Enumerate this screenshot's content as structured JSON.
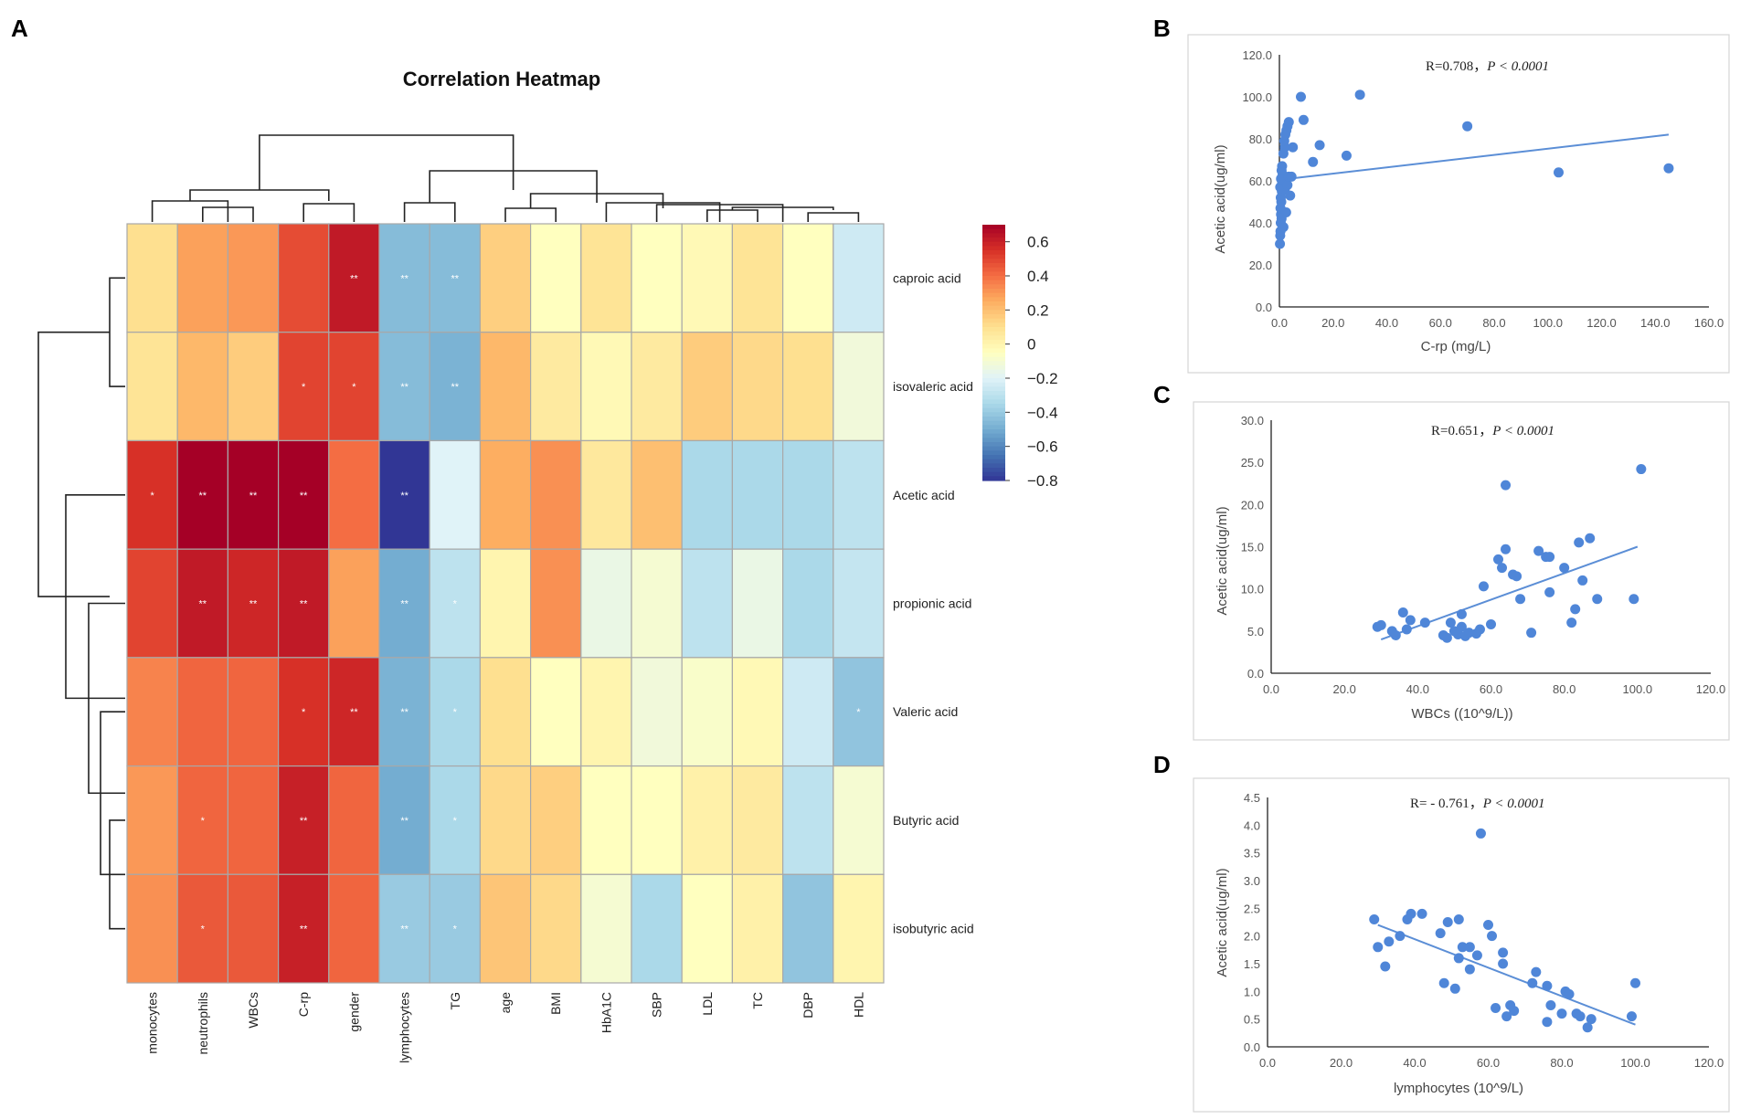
{
  "panel_labels": {
    "a": "A",
    "b": "B",
    "c": "C",
    "d": "D"
  },
  "chart_data": [
    {
      "type": "heatmap",
      "title": "Correlation Heatmap",
      "rows": [
        "caproic acid",
        "isovaleric acid",
        "Acetic acid",
        "propionic acid",
        "Valeric acid",
        "Butyric acid",
        "isobutyric acid"
      ],
      "columns": [
        "monocytes",
        "neutrophils",
        "WBCs",
        "C-rp",
        "gender",
        "lymphocytes",
        "TG",
        "age",
        "BMI",
        "HbA1C",
        "SBP",
        "LDL",
        "TC",
        "DBP",
        "HDL"
      ],
      "values": [
        [
          0.1,
          0.28,
          0.3,
          0.48,
          0.62,
          -0.45,
          -0.45,
          0.15,
          -0.05,
          0.08,
          -0.05,
          -0.02,
          0.08,
          -0.05,
          -0.25
        ],
        [
          0.08,
          0.22,
          0.16,
          0.5,
          0.5,
          -0.45,
          -0.48,
          0.22,
          0.05,
          -0.02,
          0.05,
          0.16,
          0.12,
          0.1,
          -0.12
        ],
        [
          0.55,
          0.72,
          0.7,
          0.75,
          0.4,
          -0.8,
          -0.2,
          0.25,
          0.32,
          0.06,
          0.2,
          -0.35,
          -0.35,
          -0.35,
          -0.3
        ],
        [
          0.5,
          0.62,
          0.58,
          0.62,
          0.28,
          -0.5,
          -0.3,
          0.0,
          0.32,
          -0.15,
          -0.1,
          -0.3,
          -0.15,
          -0.35,
          -0.28
        ],
        [
          0.35,
          0.42,
          0.42,
          0.55,
          0.58,
          -0.48,
          -0.35,
          0.1,
          -0.05,
          0.0,
          -0.12,
          -0.08,
          -0.02,
          -0.25,
          -0.42
        ],
        [
          0.3,
          0.42,
          0.42,
          0.6,
          0.42,
          -0.5,
          -0.35,
          0.12,
          0.15,
          -0.05,
          -0.05,
          0.02,
          0.05,
          -0.3,
          -0.1
        ],
        [
          0.32,
          0.45,
          0.45,
          0.6,
          0.42,
          -0.4,
          -0.4,
          0.18,
          0.12,
          -0.1,
          -0.35,
          -0.05,
          0.02,
          -0.42,
          0.0
        ]
      ],
      "significance": [
        [
          "",
          "",
          "",
          "",
          "**",
          "**",
          "**",
          "",
          "",
          "",
          "",
          "",
          "",
          "",
          ""
        ],
        [
          "",
          "",
          "",
          "*",
          "*",
          "**",
          "**",
          "",
          "",
          "",
          "",
          "",
          "",
          "",
          ""
        ],
        [
          "*",
          "**",
          "**",
          "**",
          "",
          "**",
          "",
          "",
          "",
          "",
          "",
          "",
          "",
          "",
          ""
        ],
        [
          "",
          "**",
          "**",
          "**",
          "",
          "**",
          "*",
          "",
          "",
          "",
          "",
          "",
          "",
          "",
          ""
        ],
        [
          "",
          "",
          "",
          "*",
          "**",
          "**",
          "*",
          "",
          "",
          "",
          "",
          "",
          "",
          "",
          "*"
        ],
        [
          "",
          "*",
          "",
          "**",
          "",
          "**",
          "*",
          "",
          "",
          "",
          "",
          "",
          "",
          "",
          ""
        ],
        [
          "",
          "*",
          "",
          "**",
          "",
          "**",
          "*",
          "",
          "",
          "",
          "",
          "",
          "",
          "",
          ""
        ]
      ],
      "colorbar": {
        "min": -0.8,
        "max": 0.7,
        "ticks": [
          "0.6",
          "0.4",
          "0.2",
          "0",
          "−0.2",
          "−0.4",
          "−0.6",
          "−0.8"
        ],
        "colormap": "RdYlBu_r"
      }
    },
    {
      "type": "scatter",
      "annotation_r": "R=0.708，",
      "annotation_p": "P < 0.0001",
      "xlabel": "C-rp (mg/L)",
      "ylabel": "Acetic acid(ug/ml)",
      "xlim": [
        0,
        160
      ],
      "ylim": [
        0,
        120
      ],
      "xticks": [
        "0.0",
        "20.0",
        "40.0",
        "60.0",
        "80.0",
        "100.0",
        "120.0",
        "140.0",
        "160.0"
      ],
      "yticks": [
        "0.0",
        "20.0",
        "40.0",
        "60.0",
        "80.0",
        "100.0",
        "120.0"
      ],
      "trendline": [
        [
          0,
          60.5
        ],
        [
          145,
          82
        ]
      ],
      "points": [
        [
          0.2,
          30
        ],
        [
          0.3,
          34
        ],
        [
          0.4,
          36
        ],
        [
          0.5,
          40
        ],
        [
          0.6,
          44
        ],
        [
          0.4,
          47
        ],
        [
          0.7,
          50
        ],
        [
          0.5,
          52
        ],
        [
          0.9,
          55
        ],
        [
          0.3,
          57
        ],
        [
          1.0,
          59
        ],
        [
          0.6,
          61
        ],
        [
          1.2,
          63
        ],
        [
          0.8,
          65
        ],
        [
          1.0,
          67
        ],
        [
          1.5,
          73
        ],
        [
          2.0,
          76
        ],
        [
          1.8,
          79
        ],
        [
          2.2,
          82
        ],
        [
          2.6,
          84
        ],
        [
          3.0,
          86
        ],
        [
          3.5,
          88
        ],
        [
          2.0,
          56
        ],
        [
          3.0,
          58
        ],
        [
          3.5,
          62
        ],
        [
          4.5,
          62
        ],
        [
          4.0,
          53
        ],
        [
          5.0,
          76
        ],
        [
          8.0,
          100
        ],
        [
          9.0,
          89
        ],
        [
          12.5,
          69
        ],
        [
          15,
          77
        ],
        [
          25,
          72
        ],
        [
          30,
          101
        ],
        [
          70,
          86
        ],
        [
          104,
          64
        ],
        [
          145,
          66
        ],
        [
          2.5,
          45
        ],
        [
          1.5,
          38
        ],
        [
          0.8,
          42
        ]
      ]
    },
    {
      "type": "scatter",
      "annotation_r": "R=0.651，",
      "annotation_p": "P < 0.0001",
      "xlabel": "WBCs ((10^9/L))",
      "ylabel": "Acetic acid(ug/ml)",
      "xlim": [
        0,
        120
      ],
      "ylim": [
        0,
        30
      ],
      "xticks": [
        "0.0",
        "20.0",
        "40.0",
        "60.0",
        "80.0",
        "100.0",
        "120.0"
      ],
      "yticks": [
        "0.0",
        "5.0",
        "10.0",
        "15.0",
        "20.0",
        "25.0",
        "30.0"
      ],
      "trendline": [
        [
          30,
          4
        ],
        [
          100,
          15
        ]
      ],
      "points": [
        [
          29,
          5.5
        ],
        [
          30,
          5.7
        ],
        [
          33,
          5
        ],
        [
          34,
          4.5
        ],
        [
          36,
          7.2
        ],
        [
          37,
          5.2
        ],
        [
          38,
          6.3
        ],
        [
          42,
          6
        ],
        [
          47,
          4.5
        ],
        [
          48,
          4.2
        ],
        [
          49,
          6
        ],
        [
          50,
          5
        ],
        [
          51,
          4.6
        ],
        [
          52,
          7
        ],
        [
          52,
          5.5
        ],
        [
          53,
          4.4
        ],
        [
          54,
          4.8
        ],
        [
          56,
          4.7
        ],
        [
          57,
          5.2
        ],
        [
          58,
          10.3
        ],
        [
          60,
          5.8
        ],
        [
          62,
          13.5
        ],
        [
          63,
          12.5
        ],
        [
          64,
          14.7
        ],
        [
          64,
          22.3
        ],
        [
          66,
          11.7
        ],
        [
          67,
          11.5
        ],
        [
          68,
          8.8
        ],
        [
          71,
          4.8
        ],
        [
          73,
          14.5
        ],
        [
          75,
          13.8
        ],
        [
          76,
          13.8
        ],
        [
          76,
          9.6
        ],
        [
          80,
          12.5
        ],
        [
          82,
          6
        ],
        [
          83,
          7.6
        ],
        [
          84,
          15.5
        ],
        [
          85,
          11
        ],
        [
          87,
          16
        ],
        [
          89,
          8.8
        ],
        [
          99,
          8.8
        ],
        [
          101,
          24.2
        ]
      ]
    },
    {
      "type": "scatter",
      "annotation_r": "R= - 0.761，",
      "annotation_p": "P < 0.0001",
      "xlabel": "lymphocytes (10^9/L)",
      "ylabel": "Acetic acid(ug/ml)",
      "xlim": [
        0,
        120
      ],
      "ylim": [
        0,
        4.5
      ],
      "xticks": [
        "0.0",
        "20.0",
        "40.0",
        "60.0",
        "80.0",
        "100.0",
        "120.0"
      ],
      "yticks": [
        "0.0",
        "0.5",
        "1.0",
        "1.5",
        "2.0",
        "2.5",
        "3.0",
        "3.5",
        "4.0",
        "4.5"
      ],
      "trendline": [
        [
          30,
          2.2
        ],
        [
          100,
          0.4
        ]
      ],
      "points": [
        [
          29,
          2.3
        ],
        [
          30,
          1.8
        ],
        [
          32,
          1.45
        ],
        [
          33,
          1.9
        ],
        [
          36,
          2.0
        ],
        [
          38,
          2.3
        ],
        [
          39,
          2.4
        ],
        [
          42,
          2.4
        ],
        [
          47,
          2.05
        ],
        [
          48,
          1.15
        ],
        [
          49,
          2.25
        ],
        [
          51,
          1.05
        ],
        [
          52,
          2.3
        ],
        [
          52,
          1.6
        ],
        [
          53,
          1.8
        ],
        [
          55,
          1.4
        ],
        [
          55,
          1.8
        ],
        [
          57,
          1.65
        ],
        [
          58,
          3.85
        ],
        [
          60,
          2.2
        ],
        [
          61,
          2.0
        ],
        [
          62,
          0.7
        ],
        [
          64,
          1.7
        ],
        [
          64,
          1.5
        ],
        [
          65,
          0.55
        ],
        [
          66,
          0.75
        ],
        [
          67,
          0.65
        ],
        [
          72,
          1.15
        ],
        [
          73,
          1.35
        ],
        [
          76,
          0.45
        ],
        [
          76,
          1.1
        ],
        [
          77,
          0.75
        ],
        [
          80,
          0.6
        ],
        [
          81,
          1.0
        ],
        [
          82,
          0.95
        ],
        [
          84,
          0.6
        ],
        [
          85,
          0.55
        ],
        [
          87,
          0.35
        ],
        [
          88,
          0.5
        ],
        [
          99,
          0.55
        ],
        [
          100,
          1.15
        ]
      ]
    }
  ]
}
